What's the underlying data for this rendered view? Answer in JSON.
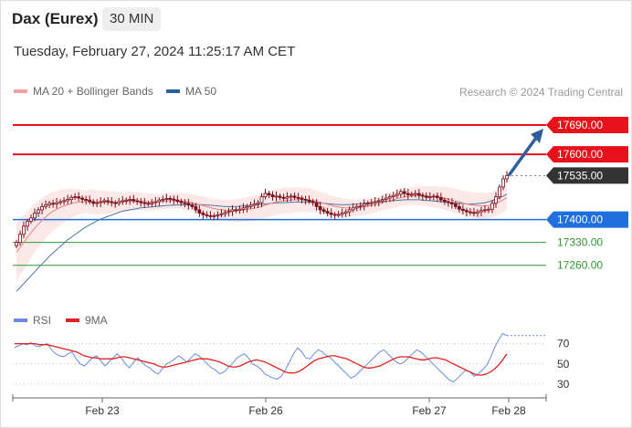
{
  "header": {
    "instrument": "Dax (Eurex)",
    "timeframe": "30 MIN",
    "datetime": "Tuesday, February 27, 2024 11:25:17 AM CET"
  },
  "legend": {
    "ma20_label": "MA 20 + Bollinger Bands",
    "ma50_label": "MA 50",
    "credit": "Research © 2024 Trading Central",
    "rsi_label": "RSI",
    "rsi_ma_label": "9MA"
  },
  "colors": {
    "ma20": "#f08080",
    "bands_fill": "#fde2e2",
    "ma50": "#4a78a8",
    "resistance": "#e8101a",
    "support_main": "#1f6fe0",
    "support_green": "#2f9a2f",
    "last_price": "#333333",
    "candle": "#7a0f1a",
    "rsi": "#6a8ae0",
    "rsi_ma": "#e02020",
    "arrow": "#2f5f9a"
  },
  "chart_data": {
    "type": "candlestick",
    "x_tick_labels": [
      "Feb 23",
      "Feb 26",
      "Feb 27",
      "Feb 28"
    ],
    "ylim": [
      17150,
      17760
    ],
    "levels": [
      {
        "label": "17690.00",
        "value": 17690,
        "kind": "resistance",
        "line": "solid"
      },
      {
        "label": "17600.00",
        "value": 17600,
        "kind": "resistance",
        "line": "solid"
      },
      {
        "label": "17535.00",
        "value": 17535,
        "kind": "last",
        "line": "dotted"
      },
      {
        "label": "17400.00",
        "value": 17400,
        "kind": "pivot",
        "line": "solid"
      },
      {
        "label": "17330.00",
        "value": 17330,
        "kind": "support",
        "line": "solid"
      },
      {
        "label": "17260.00",
        "value": 17260,
        "kind": "support",
        "line": "solid"
      }
    ],
    "close_series": [
      17330,
      17355,
      17380,
      17395,
      17405,
      17420,
      17430,
      17440,
      17445,
      17450,
      17448,
      17452,
      17455,
      17458,
      17462,
      17468,
      17470,
      17466,
      17462,
      17460,
      17455,
      17450,
      17452,
      17455,
      17458,
      17455,
      17452,
      17450,
      17455,
      17458,
      17460,
      17462,
      17458,
      17455,
      17452,
      17450,
      17448,
      17452,
      17455,
      17460,
      17462,
      17465,
      17463,
      17460,
      17456,
      17452,
      17450,
      17445,
      17440,
      17430,
      17420,
      17415,
      17412,
      17410,
      17412,
      17415,
      17418,
      17422,
      17425,
      17430,
      17428,
      17432,
      17436,
      17440,
      17444,
      17448,
      17452,
      17470,
      17480,
      17476,
      17470,
      17472,
      17468,
      17466,
      17470,
      17472,
      17468,
      17466,
      17462,
      17460,
      17456,
      17452,
      17440,
      17430,
      17425,
      17420,
      17416,
      17414,
      17416,
      17420,
      17424,
      17430,
      17436,
      17440,
      17442,
      17448,
      17450,
      17452,
      17455,
      17458,
      17462,
      17466,
      17470,
      17474,
      17478,
      17486,
      17480,
      17476,
      17478,
      17480,
      17475,
      17472,
      17468,
      17470,
      17472,
      17468,
      17460,
      17455,
      17452,
      17448,
      17440,
      17432,
      17428,
      17424,
      17422,
      17420,
      17424,
      17428,
      17430,
      17432,
      17450,
      17470,
      17500,
      17525,
      17535
    ],
    "ma50_series": [
      17180,
      17192,
      17204,
      17216,
      17228,
      17240,
      17252,
      17264,
      17276,
      17288,
      17298,
      17308,
      17318,
      17328,
      17338,
      17346,
      17354,
      17362,
      17370,
      17378,
      17384,
      17390,
      17396,
      17402,
      17406,
      17410,
      17414,
      17418,
      17422,
      17426,
      17428,
      17430,
      17432,
      17434,
      17436,
      17437,
      17438,
      17439,
      17440,
      17441,
      17442,
      17443,
      17444,
      17444,
      17445,
      17445,
      17446,
      17446,
      17446,
      17446,
      17446,
      17446,
      17445,
      17444,
      17443,
      17442,
      17441,
      17440,
      17440,
      17440,
      17440,
      17441,
      17442,
      17443,
      17444,
      17445,
      17446,
      17447,
      17448,
      17449,
      17450,
      17451,
      17452,
      17452,
      17453,
      17453,
      17454,
      17454,
      17454,
      17454,
      17454,
      17453,
      17452,
      17451,
      17450,
      17449,
      17448,
      17447,
      17446,
      17446,
      17446,
      17446,
      17447,
      17448,
      17449,
      17450,
      17451,
      17452,
      17453,
      17454,
      17455,
      17456,
      17457,
      17458,
      17459,
      17460,
      17461,
      17461,
      17461,
      17461,
      17461,
      17460,
      17459,
      17458,
      17457,
      17456,
      17455,
      17454,
      17453,
      17452,
      17451,
      17450,
      17449,
      17448,
      17448,
      17448,
      17449,
      17450,
      17452,
      17455,
      17458,
      17462,
      17467,
      17472,
      17478
    ],
    "ma20_series": [
      17300,
      17315,
      17330,
      17345,
      17360,
      17374,
      17386,
      17398,
      17408,
      17418,
      17426,
      17432,
      17438,
      17442,
      17446,
      17450,
      17452,
      17454,
      17455,
      17455,
      17455,
      17454,
      17453,
      17453,
      17453,
      17453,
      17453,
      17453,
      17453,
      17454,
      17455,
      17456,
      17456,
      17456,
      17456,
      17455,
      17454,
      17454,
      17454,
      17455,
      17456,
      17457,
      17458,
      17458,
      17458,
      17457,
      17456,
      17454,
      17452,
      17449,
      17446,
      17443,
      17440,
      17437,
      17434,
      17432,
      17430,
      17429,
      17428,
      17428,
      17428,
      17429,
      17430,
      17431,
      17433,
      17435,
      17437,
      17441,
      17445,
      17448,
      17451,
      17454,
      17456,
      17458,
      17459,
      17460,
      17461,
      17461,
      17461,
      17461,
      17460,
      17458,
      17456,
      17453,
      17450,
      17447,
      17444,
      17441,
      17439,
      17437,
      17436,
      17435,
      17435,
      17436,
      17437,
      17439,
      17441,
      17443,
      17446,
      17449,
      17452,
      17455,
      17458,
      17461,
      17464,
      17467,
      17470,
      17471,
      17472,
      17473,
      17473,
      17473,
      17472,
      17471,
      17470,
      17469,
      17467,
      17465,
      17463,
      17460,
      17457,
      17454,
      17451,
      17448,
      17446,
      17444,
      17443,
      17442,
      17442,
      17443,
      17446,
      17450,
      17455,
      17461,
      17468
    ],
    "rsi_ylim": [
      20,
      85
    ],
    "rsi_ticks": [
      "70",
      "50",
      "30"
    ],
    "rsi_levels": [
      70,
      50,
      30
    ],
    "rsi_series": [
      66,
      68,
      70,
      69,
      71,
      68,
      67,
      69,
      70,
      64,
      60,
      58,
      57,
      60,
      62,
      55,
      50,
      48,
      52,
      56,
      58,
      53,
      48,
      52,
      56,
      60,
      56,
      50,
      46,
      52,
      56,
      52,
      48,
      46,
      42,
      40,
      45,
      50,
      52,
      55,
      58,
      55,
      52,
      56,
      60,
      58,
      54,
      50,
      46,
      44,
      40,
      42,
      46,
      50,
      55,
      58,
      60,
      56,
      50,
      48,
      45,
      40,
      38,
      36,
      35,
      38,
      44,
      52,
      60,
      66,
      62,
      56,
      55,
      60,
      64,
      62,
      58,
      56,
      52,
      48,
      44,
      40,
      36,
      38,
      42,
      46,
      50,
      54,
      58,
      62,
      64,
      60,
      56,
      52,
      50,
      52,
      56,
      60,
      64,
      62,
      58,
      54,
      50,
      46,
      42,
      38,
      34,
      32,
      36,
      40,
      44,
      42,
      38,
      40,
      44,
      48,
      56,
      66,
      74,
      80,
      78
    ],
    "rsi_ma_series": [
      70,
      70,
      70,
      70,
      70,
      70,
      69,
      69,
      69,
      68,
      67,
      66,
      65,
      64,
      63,
      62,
      60,
      58,
      57,
      56,
      56,
      55,
      55,
      55,
      55,
      56,
      57,
      57,
      56,
      55,
      54,
      53,
      52,
      51,
      50,
      48,
      47,
      47,
      48,
      49,
      50,
      51,
      52,
      53,
      54,
      55,
      55,
      55,
      54,
      53,
      52,
      50,
      48,
      47,
      47,
      48,
      50,
      52,
      53,
      54,
      53,
      52,
      50,
      48,
      46,
      44,
      42,
      41,
      41,
      42,
      44,
      47,
      50,
      53,
      55,
      56,
      57,
      58,
      58,
      57,
      56,
      55,
      53,
      51,
      49,
      47,
      46,
      46,
      47,
      48,
      50,
      52,
      54,
      56,
      57,
      57,
      57,
      56,
      55,
      54,
      54,
      55,
      56,
      56,
      55,
      54,
      52,
      50,
      48,
      46,
      44,
      42,
      40,
      39,
      39,
      40,
      42,
      45,
      49,
      54,
      60
    ]
  }
}
